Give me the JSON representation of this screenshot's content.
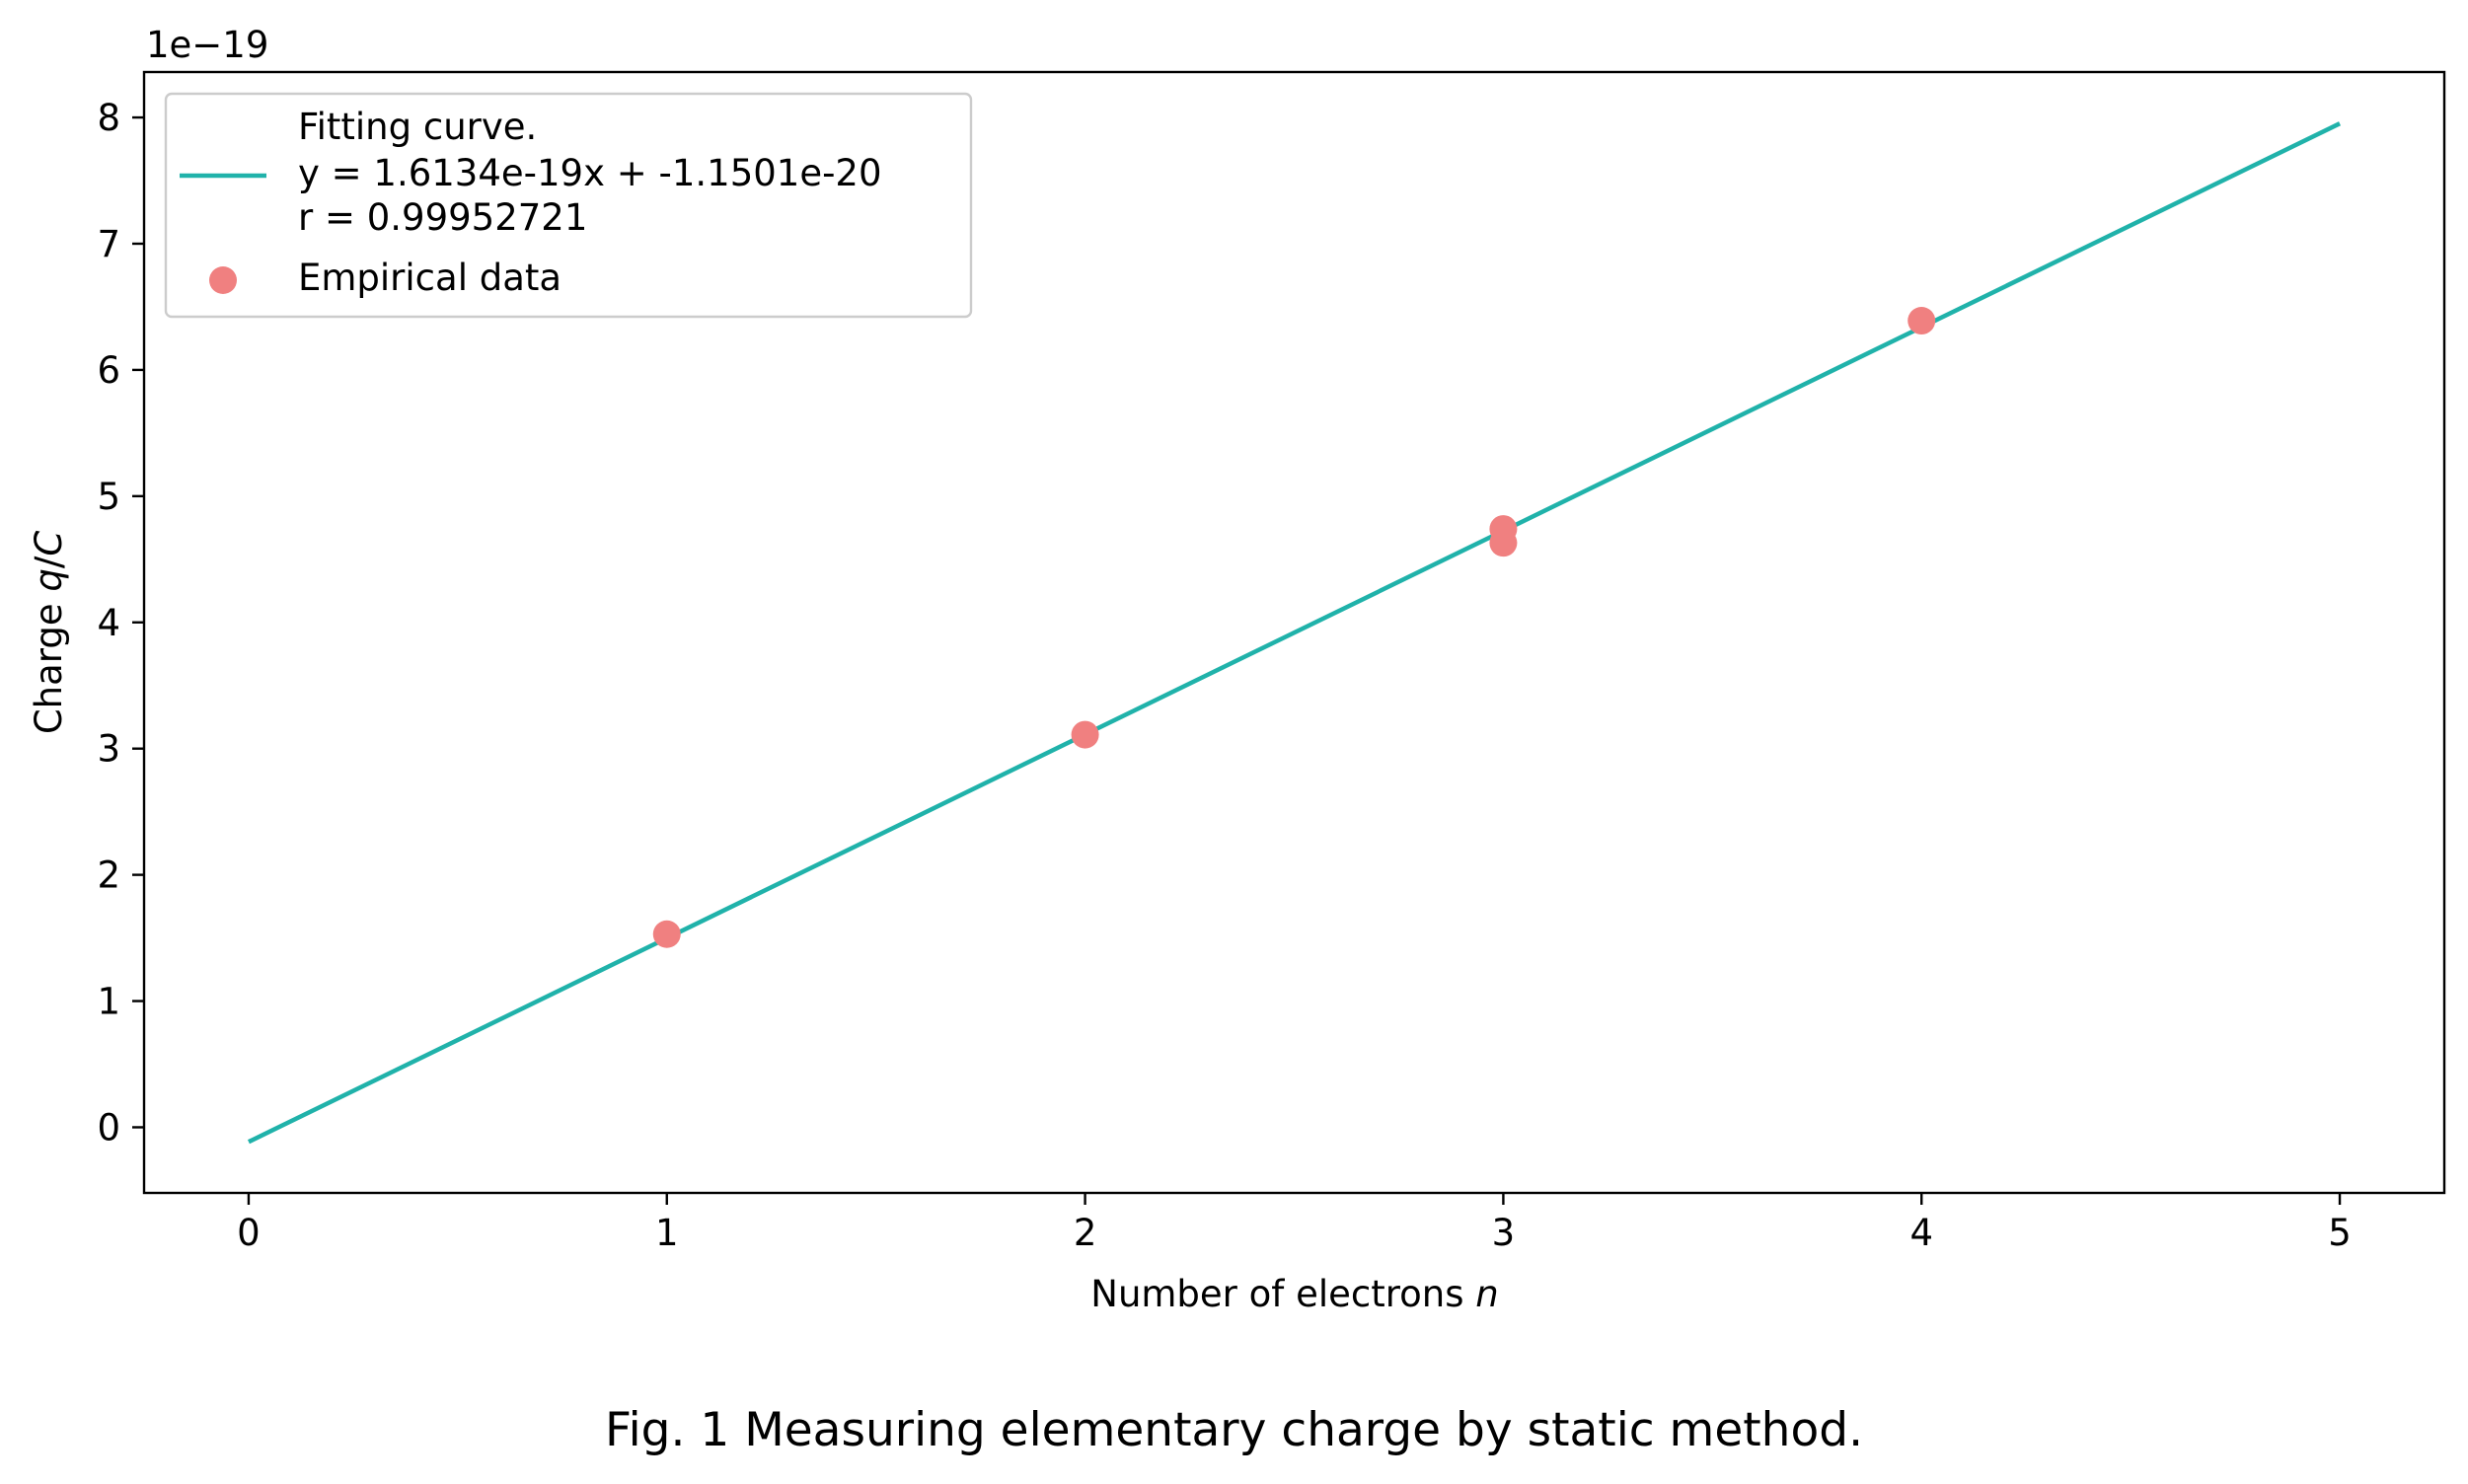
{
  "caption": "Fig. 1 Measuring elementary charge by static method.",
  "chart_data": {
    "type": "scatter",
    "xlabel_prefix": "Number of electrons ",
    "xlabel_var": "n",
    "ylabel_prefix": "Charge ",
    "ylabel_var": "q",
    "ylabel_suffix": "/",
    "ylabel_unit": "C",
    "y_offset_label": "1e−19",
    "xlim": [
      -0.25,
      5.25
    ],
    "ylim": [
      -0.52,
      8.36
    ],
    "x_ticks": [
      0,
      1,
      2,
      3,
      4,
      5
    ],
    "x_tick_labels": [
      "0",
      "1",
      "2",
      "3",
      "4",
      "5"
    ],
    "y_ticks": [
      0,
      1,
      2,
      3,
      4,
      5,
      6,
      7,
      8
    ],
    "y_tick_labels": [
      "0",
      "1",
      "2",
      "3",
      "4",
      "5",
      "6",
      "7",
      "8"
    ],
    "grid": false,
    "legend_position": "upper-left",
    "fit": {
      "name_lines": [
        "Fitting curve.",
        "y = 1.6134e-19x + -1.1501e-20",
        "r = 0.99952721"
      ],
      "slope": 1.6134,
      "intercept": -0.11501,
      "x_range": [
        0,
        5
      ],
      "color": "#20b2aa"
    },
    "points": {
      "name": "Empirical data",
      "color": "#f08080",
      "x": [
        1,
        2,
        3,
        3,
        4
      ],
      "y": [
        1.53,
        3.11,
        4.74,
        4.63,
        6.39
      ]
    }
  }
}
